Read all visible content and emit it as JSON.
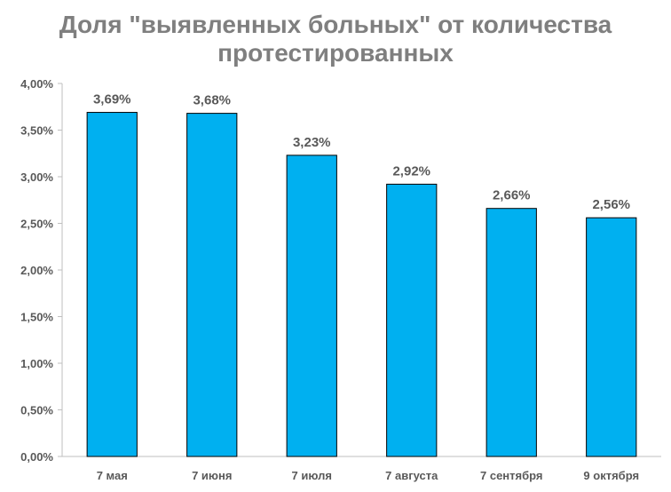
{
  "chart_data": {
    "type": "bar",
    "title_lines": [
      "Доля \"выявленных больных\" от количества",
      "протестированных"
    ],
    "categories": [
      "7 мая",
      "7 июня",
      "7 июля",
      "7 августа",
      "7 сентября",
      "9 октября"
    ],
    "values": [
      3.69,
      3.68,
      3.23,
      2.92,
      2.66,
      2.56
    ],
    "data_labels": [
      "3,69%",
      "3,68%",
      "3,23%",
      "2,92%",
      "2,66%",
      "2,56%"
    ],
    "y_ticks": [
      0,
      0.5,
      1.0,
      1.5,
      2.0,
      2.5,
      3.0,
      3.5,
      4.0
    ],
    "y_tick_labels": [
      "0,00%",
      "0,50%",
      "1,00%",
      "1,50%",
      "2,00%",
      "2,50%",
      "3,00%",
      "3,50%",
      "4,00%"
    ],
    "ylim": [
      0,
      4
    ],
    "grid": false,
    "legend": "none",
    "bar_color": "#00b0f0",
    "bar_outline_color": "#000000",
    "axis_color": "#bfbfbf"
  }
}
